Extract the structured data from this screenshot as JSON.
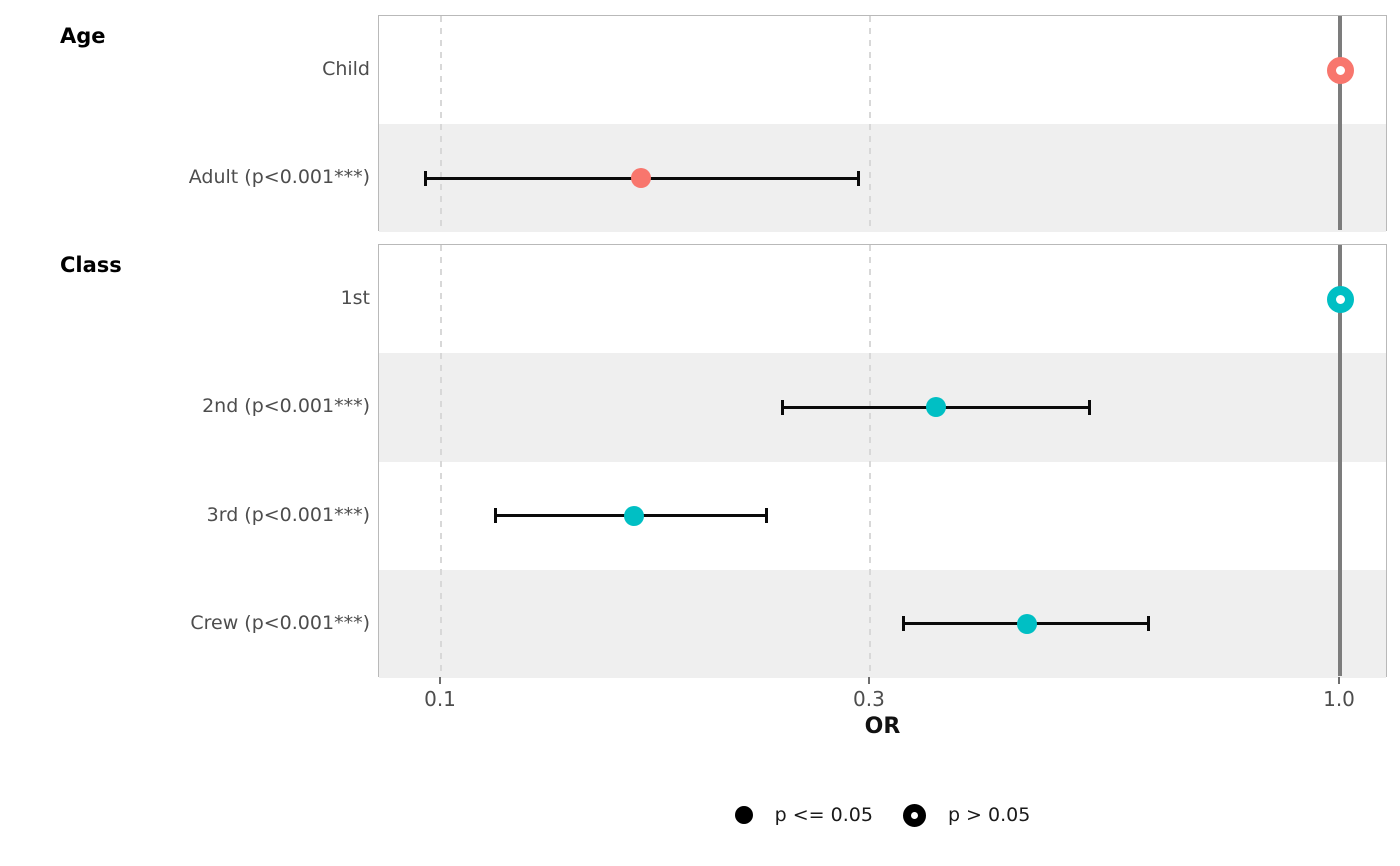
{
  "chart_data": {
    "type": "forest",
    "xlabel": "OR",
    "x_scale": "log10",
    "x_ticks": [
      {
        "label": "0.1",
        "value": 0.1
      },
      {
        "label": "0.3",
        "value": 0.3
      },
      {
        "label": "1.0",
        "value": 1.0
      }
    ],
    "xlim": [
      0.085,
      1.13
    ],
    "reference_line": 1.0,
    "grid": "dashed-vertical-at-ticks",
    "legend_position": "bottom-center",
    "groups": [
      {
        "title": "Age",
        "color": "#F8766D",
        "rows": [
          {
            "label": "Child",
            "or": 1.0,
            "ci_low": null,
            "ci_high": null,
            "reference": true,
            "significant": false,
            "shaded": false
          },
          {
            "label": "Adult (p<0.001***)",
            "or": 0.167,
            "ci_low": 0.096,
            "ci_high": 0.291,
            "reference": false,
            "significant": true,
            "shaded": true
          }
        ]
      },
      {
        "title": "Class",
        "color": "#00BFC4",
        "rows": [
          {
            "label": "1st",
            "or": 1.0,
            "ci_low": null,
            "ci_high": null,
            "reference": true,
            "significant": false,
            "shaded": false
          },
          {
            "label": "2nd (p<0.001***)",
            "or": 0.355,
            "ci_low": 0.24,
            "ci_high": 0.526,
            "reference": false,
            "significant": true,
            "shaded": true
          },
          {
            "label": "3rd (p<0.001***)",
            "or": 0.164,
            "ci_low": 0.115,
            "ci_high": 0.23,
            "reference": false,
            "significant": true,
            "shaded": false
          },
          {
            "label": "Crew (p<0.001***)",
            "or": 0.449,
            "ci_low": 0.327,
            "ci_high": 0.613,
            "reference": false,
            "significant": true,
            "shaded": true
          }
        ]
      }
    ],
    "legend": [
      {
        "label": "p <= 0.05",
        "shape": "filled-circle"
      },
      {
        "label": "p > 0.05",
        "shape": "open-circle"
      }
    ],
    "colors": {
      "age_series": "#F8766D",
      "class_series": "#00BFC4",
      "reference_line": "#7c7c7c",
      "shaded_band": "#efefef",
      "errorbar": "#0a0a0a",
      "gridline": "#d8d8d8",
      "panel_border": "#b9b9b9",
      "axis_text": "#4d4d4d",
      "legend_key": "#000000"
    }
  }
}
